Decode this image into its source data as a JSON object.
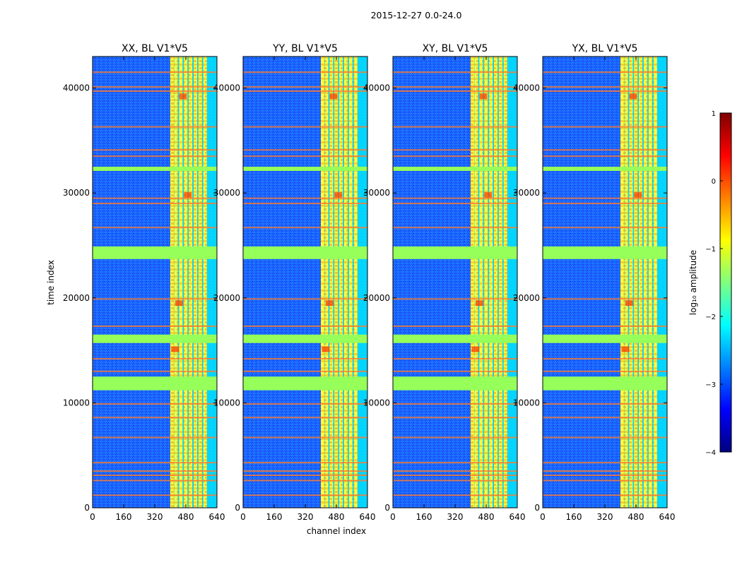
{
  "chart_data": {
    "type": "heatmap",
    "title": "2015-12-27 0.0-24.0",
    "xlabel": "channel index",
    "ylabel": "time index",
    "xlim": [
      0,
      640
    ],
    "ylim": [
      0,
      43000
    ],
    "x_ticks": [
      "0",
      "160",
      "320",
      "480",
      "640"
    ],
    "y_ticks": [
      "0",
      "10000",
      "20000",
      "30000",
      "40000"
    ],
    "panels": [
      {
        "title": "XX, BL V1*V5"
      },
      {
        "title": "YY, BL V1*V5"
      },
      {
        "title": "XY, BL V1*V5"
      },
      {
        "title": "YX, BL V1*V5"
      }
    ],
    "colorbar": {
      "label": "log₁₀ amplitude",
      "range": [
        -4,
        1
      ],
      "ticks": [
        "1",
        "0",
        "−1",
        "−2",
        "−3",
        "−4"
      ],
      "colormap": "jet"
    },
    "flagged_time_ranges": [
      [
        11200,
        12500
      ],
      [
        15700,
        16500
      ],
      [
        23700,
        24900
      ],
      [
        32100,
        32500
      ]
    ],
    "strong_channel_bands": [
      [
        400,
        640
      ]
    ],
    "colors": {
      "flagged": "#96ff5a",
      "background": "#1e6eff",
      "rfi_line": "#ff7a2a"
    }
  }
}
